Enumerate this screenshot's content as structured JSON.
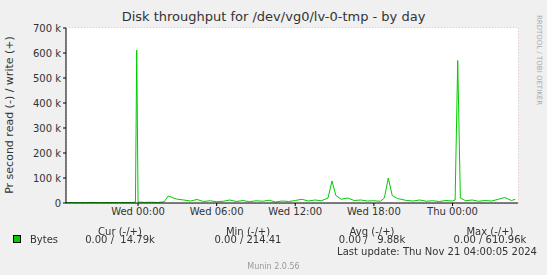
{
  "chart_data": {
    "type": "line",
    "title": "Disk throughput for /dev/vg0/lv-0-tmp - by day",
    "y_label": "Pr second read (-) / write (+)",
    "x": [
      -5.5,
      -5,
      -4.5,
      -4,
      -3.5,
      -3,
      -2.5,
      -2,
      -1.5,
      -1,
      -0.5,
      -0.2,
      -0.1,
      0,
      0.5,
      1,
      1.5,
      2,
      2.3,
      2.6,
      3,
      3.5,
      4,
      4.5,
      5,
      5.5,
      6,
      6.5,
      7,
      7.5,
      8,
      8.5,
      9,
      9.5,
      10,
      10.5,
      11,
      11.5,
      12,
      12.5,
      13,
      13.5,
      14,
      14.5,
      14.8,
      15.1,
      15.5,
      16,
      16.5,
      17,
      17.5,
      18,
      18.5,
      18.8,
      19.1,
      19.4,
      19.8,
      20.5,
      21,
      21.5,
      22,
      22.5,
      23,
      23.5,
      24,
      24.2,
      24.4,
      24.6,
      25,
      25.5,
      26,
      26.5,
      27,
      27.5,
      28,
      28.5,
      28.8
    ],
    "series": [
      {
        "name": "Bytes",
        "color": "#00cc00",
        "values": [
          1500,
          2000,
          1200,
          1800,
          2500,
          1500,
          2000,
          1800,
          1500,
          2200,
          1800,
          3000,
          610960,
          4000,
          2500,
          3000,
          2000,
          5000,
          28000,
          22000,
          15000,
          12000,
          8000,
          14000,
          6000,
          9000,
          5000,
          7000,
          12000,
          6000,
          10000,
          5000,
          9000,
          7000,
          11000,
          4000,
          8000,
          6000,
          10000,
          15000,
          8000,
          12000,
          9000,
          20000,
          88000,
          30000,
          15000,
          20000,
          10000,
          12000,
          8000,
          9000,
          7000,
          20000,
          100000,
          30000,
          18000,
          10000,
          8000,
          12000,
          7000,
          9000,
          6000,
          10000,
          8000,
          12000,
          570000,
          20000,
          9000,
          12000,
          7000,
          10000,
          8000,
          15000,
          22000,
          10000,
          14790
        ]
      }
    ],
    "xlim": [
      -5.5,
      29
    ],
    "xticks": [
      {
        "value": 0,
        "label": "Wed 00:00"
      },
      {
        "value": 6,
        "label": "Wed 06:00"
      },
      {
        "value": 12,
        "label": "Wed 12:00"
      },
      {
        "value": 18,
        "label": "Wed 18:00"
      },
      {
        "value": 24,
        "label": "Thu 00:00"
      }
    ],
    "ylim": [
      0,
      700000
    ],
    "yticks": [
      0,
      {
        "value": 100000,
        "label": "100 k"
      },
      {
        "value": 200000,
        "label": "200 k"
      },
      {
        "value": 300000,
        "label": "300 k"
      },
      {
        "value": 400000,
        "label": "400 k"
      },
      {
        "value": 500000,
        "label": "500 k"
      },
      {
        "value": 600000,
        "label": "600 k"
      },
      {
        "value": 700000,
        "label": "700 k"
      }
    ],
    "grid": true,
    "stats": {
      "columns": [
        "Cur (-/+)",
        "Min (-/+)",
        "Avg (-/+)",
        "Max (-/+)"
      ],
      "values": [
        "0.00 /  14.79k",
        "0.00 / 214.41",
        "0.00 /   9.88k",
        "0.00 / 610.96k"
      ]
    },
    "footer": "Last update: Thu Nov 21 04:00:05 2024",
    "credit": "Munin 2.0.56",
    "watermark": "RRDTOOL / TOBI OETIKER"
  }
}
